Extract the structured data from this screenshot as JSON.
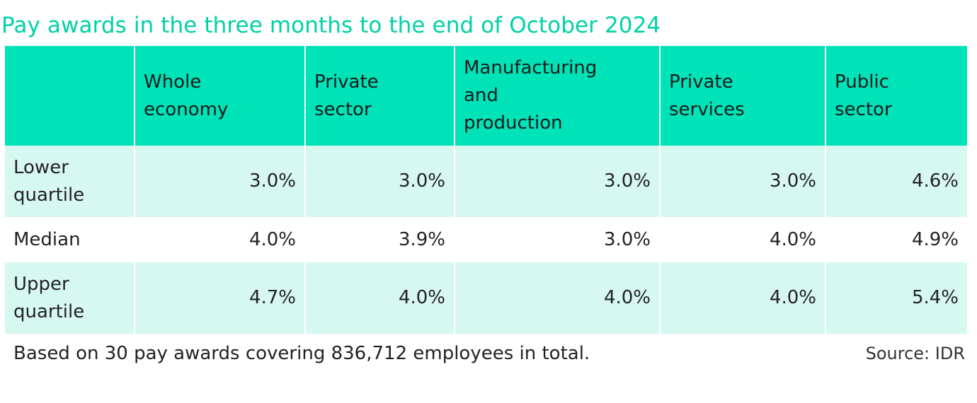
{
  "chart_data": {
    "type": "table",
    "title": "Pay awards in the three months to the end of October 2024",
    "columns": [
      "",
      "Whole\neconomy",
      "Private\nsector",
      "Manufacturing\nand\nproduction",
      "Private\nservices",
      "Public\nsector"
    ],
    "rows": [
      {
        "label": "Lower\nquartile",
        "values": [
          "3.0%",
          "3.0%",
          "3.0%",
          "3.0%",
          "4.6%"
        ]
      },
      {
        "label": "Median",
        "values": [
          "4.0%",
          "3.9%",
          "3.0%",
          "4.0%",
          "4.9%"
        ]
      },
      {
        "label": "Upper\nquartile",
        "values": [
          "4.7%",
          "4.0%",
          "4.0%",
          "4.0%",
          "5.4%"
        ]
      }
    ],
    "footnote": "Based on 30 pay awards covering 836,712 employees in total.",
    "source": "Source: IDR",
    "colors": {
      "title": "#00d1a8",
      "header_bg": "#00e2b8",
      "shaded_row_bg": "#d7f8f0"
    }
  }
}
